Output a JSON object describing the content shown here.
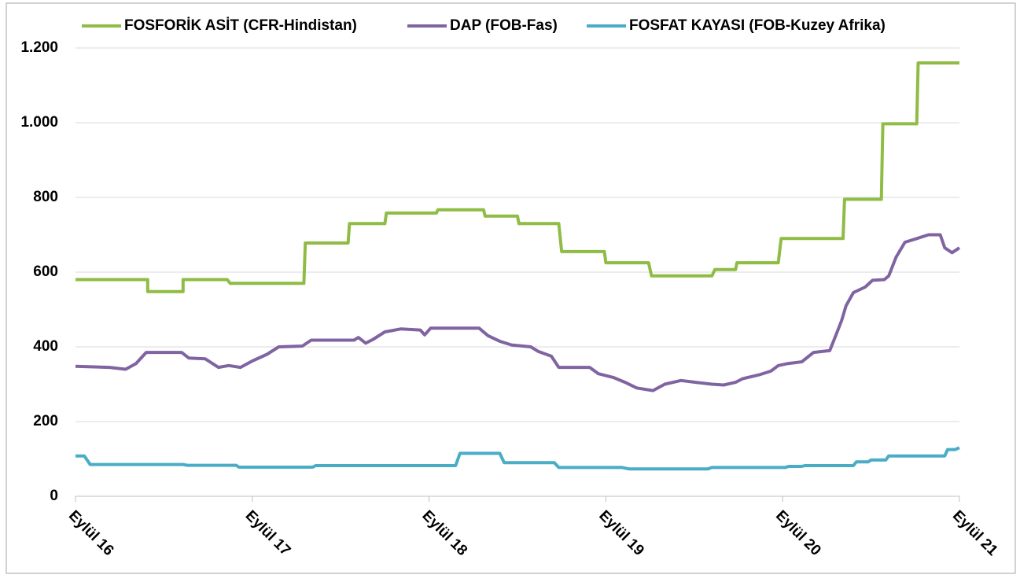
{
  "chart_data": {
    "type": "line",
    "xlim": [
      0,
      60
    ],
    "xticks": [
      {
        "value": 0,
        "label": "Eylül 16"
      },
      {
        "value": 12,
        "label": "Eylül 17"
      },
      {
        "value": 24,
        "label": "Eylül 18"
      },
      {
        "value": 36,
        "label": "Eylül 19"
      },
      {
        "value": 48,
        "label": "Eylül 20"
      },
      {
        "value": 60,
        "label": "Eylül 21"
      }
    ],
    "ylim": [
      0,
      1200
    ],
    "yticks": [
      0,
      200,
      400,
      600,
      800,
      {
        "value": 1000,
        "label": "1.000"
      },
      {
        "value": 1200,
        "label": "1.200"
      }
    ],
    "grid": true,
    "legend": "top",
    "series": [
      {
        "name": "FOSFORİK ASİT (CFR-Hindistan)",
        "color": "#8fbc45",
        "x": [
          0,
          4.9,
          4.9,
          7.3,
          7.3,
          10.3,
          10.5,
          15.5,
          15.6,
          18.5,
          18.6,
          21,
          21.1,
          24.5,
          24.6,
          27.7,
          27.8,
          30,
          30.1,
          32.8,
          33,
          35.9,
          36,
          38.9,
          39.1,
          43.2,
          43.4,
          44.8,
          44.9,
          47.7,
          47.9,
          52.1,
          52.2,
          54.7,
          54.8,
          57.1,
          57.2,
          60
        ],
        "values": [
          580,
          580,
          548,
          548,
          580,
          580,
          570,
          570,
          678,
          678,
          730,
          730,
          758,
          758,
          767,
          767,
          750,
          750,
          730,
          730,
          655,
          655,
          625,
          625,
          590,
          590,
          607,
          607,
          625,
          625,
          690,
          690,
          795,
          795,
          997,
          997,
          1160,
          1160
        ]
      },
      {
        "name": "DAP (FOB-Fas)",
        "color": "#8064a2",
        "x": [
          0,
          2.3,
          3.4,
          4.1,
          4.8,
          7.2,
          7.7,
          8.8,
          9.7,
          10.4,
          11.2,
          12,
          13,
          13.8,
          15.4,
          16,
          18.9,
          19.2,
          19.7,
          20.2,
          21,
          22.1,
          23.4,
          23.7,
          24.1,
          27.4,
          28,
          28.8,
          29.6,
          30.9,
          31.4,
          32.3,
          32.8,
          34.9,
          35.5,
          36.5,
          37.3,
          38.1,
          39.2,
          40,
          41.1,
          42.1,
          43.2,
          44,
          44.8,
          45.3,
          46.4,
          47.2,
          47.7,
          48.3,
          49.3,
          50.1,
          51.2,
          51.5,
          52,
          52.3,
          52.8,
          53.6,
          54.1,
          54.9,
          55.2,
          55.7,
          56.3,
          57.1,
          57.9,
          58.7,
          59,
          59.5,
          60
        ],
        "values": [
          348,
          345,
          340,
          355,
          385,
          385,
          370,
          368,
          345,
          350,
          345,
          362,
          380,
          400,
          402,
          418,
          418,
          425,
          410,
          420,
          440,
          448,
          445,
          432,
          450,
          450,
          430,
          415,
          405,
          400,
          388,
          375,
          345,
          345,
          328,
          318,
          305,
          290,
          283,
          300,
          310,
          305,
          300,
          298,
          305,
          315,
          325,
          335,
          350,
          355,
          360,
          385,
          390,
          420,
          470,
          510,
          545,
          560,
          578,
          580,
          590,
          640,
          680,
          690,
          700,
          700,
          665,
          652,
          665
        ]
      },
      {
        "name": "FOSFAT KAYASI (FOB-Kuzey Afrika)",
        "color": "#4bacc6",
        "x": [
          0,
          0.6,
          1,
          7.3,
          7.6,
          10.9,
          11.1,
          16.1,
          16.3,
          25.8,
          26.1,
          28.8,
          29.1,
          32.5,
          32.8,
          37.1,
          37.6,
          42.9,
          43.2,
          48.2,
          48.4,
          49.3,
          49.5,
          52.8,
          53,
          53.8,
          54,
          55,
          55.2,
          59,
          59.2,
          59.7,
          60
        ],
        "values": [
          108,
          108,
          85,
          85,
          83,
          83,
          78,
          78,
          82,
          82,
          115,
          115,
          90,
          90,
          77,
          77,
          73,
          73,
          77,
          77,
          80,
          80,
          82,
          82,
          92,
          92,
          97,
          97,
          108,
          108,
          125,
          125,
          130
        ]
      }
    ]
  }
}
